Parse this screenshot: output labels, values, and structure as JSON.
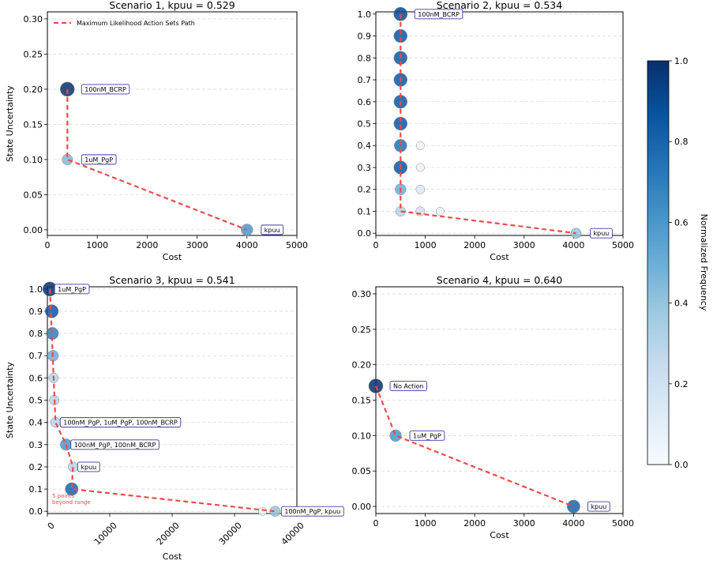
{
  "colorbar": {
    "label": "Normalized Frequency",
    "ticks": [
      "0.0",
      "0.2",
      "0.4",
      "0.6",
      "0.8",
      "1.0"
    ],
    "range": [
      0,
      1
    ]
  },
  "chart_data": [
    {
      "type": "scatter",
      "title": "Scenario 1, kpuu = 0.529",
      "xlabel": "Cost",
      "ylabel": "State Uncertainty",
      "xlim": [
        0,
        5000
      ],
      "ylim": [
        -0.008,
        0.31
      ],
      "xticks": [
        0,
        1000,
        2000,
        3000,
        4000,
        5000
      ],
      "xtick_labels": [
        "0",
        "1000",
        "2000",
        "3000",
        "4000",
        "5000"
      ],
      "yticks": [
        0,
        0.05,
        0.1,
        0.15,
        0.2,
        0.25,
        0.3
      ],
      "ytick_labels": [
        "0.00",
        "0.05",
        "0.10",
        "0.15",
        "0.20",
        "0.25",
        "0.30"
      ],
      "legend": {
        "label": "Maximum Likelihood Action Sets Path",
        "position": "top-left"
      },
      "points": [
        {
          "x": 400,
          "y": 0.2,
          "freq": 1.0
        },
        {
          "x": 400,
          "y": 0.1,
          "freq": 0.45
        },
        {
          "x": 4000,
          "y": 0.0,
          "freq": 0.6
        }
      ],
      "path": [
        [
          400,
          0.2
        ],
        [
          400,
          0.1
        ],
        [
          4000,
          0.0
        ]
      ],
      "annotations": [
        {
          "text": "100nM_BCRP",
          "x": 400,
          "y": 0.2
        },
        {
          "text": "1uM_PgP",
          "x": 400,
          "y": 0.1
        },
        {
          "text": "kpuu",
          "x": 4000,
          "y": 0.0
        }
      ]
    },
    {
      "type": "scatter",
      "title": "Scenario 2, kpuu = 0.534",
      "xlabel": "Cost",
      "ylabel": "",
      "xlim": [
        0,
        5000
      ],
      "ylim": [
        -0.01,
        1.01
      ],
      "xticks": [
        0,
        1000,
        2000,
        3000,
        4000,
        5000
      ],
      "xtick_labels": [
        "0",
        "1000",
        "2000",
        "3000",
        "4000",
        "5000"
      ],
      "yticks": [
        0,
        0.1,
        0.2,
        0.3,
        0.4,
        0.5,
        0.6,
        0.7,
        0.8,
        0.9,
        1.0
      ],
      "ytick_labels": [
        "0.0",
        "0.1",
        "0.2",
        "0.3",
        "0.4",
        "0.5",
        "0.6",
        "0.7",
        "0.8",
        "0.9",
        "1.0"
      ],
      "points": [
        {
          "x": 500,
          "y": 1.0,
          "freq": 0.9
        },
        {
          "x": 500,
          "y": 0.9,
          "freq": 0.85
        },
        {
          "x": 500,
          "y": 0.8,
          "freq": 0.85
        },
        {
          "x": 500,
          "y": 0.7,
          "freq": 0.85
        },
        {
          "x": 500,
          "y": 0.6,
          "freq": 0.85
        },
        {
          "x": 500,
          "y": 0.5,
          "freq": 0.85
        },
        {
          "x": 500,
          "y": 0.4,
          "freq": 0.75
        },
        {
          "x": 500,
          "y": 0.3,
          "freq": 0.85
        },
        {
          "x": 500,
          "y": 0.2,
          "freq": 0.5
        },
        {
          "x": 500,
          "y": 0.1,
          "freq": 0.3
        },
        {
          "x": 900,
          "y": 0.4,
          "freq": 0.05
        },
        {
          "x": 900,
          "y": 0.3,
          "freq": 0.05
        },
        {
          "x": 900,
          "y": 0.2,
          "freq": 0.15
        },
        {
          "x": 900,
          "y": 0.1,
          "freq": 0.2
        },
        {
          "x": 1300,
          "y": 0.1,
          "freq": 0.05
        },
        {
          "x": 4050,
          "y": 0.0,
          "freq": 0.4
        }
      ],
      "path": [
        [
          500,
          1.0
        ],
        [
          500,
          0.1
        ],
        [
          4050,
          0.0
        ]
      ],
      "annotations": [
        {
          "text": "100nM_BCRP",
          "x": 500,
          "y": 1.0
        },
        {
          "text": "kpuu",
          "x": 4050,
          "y": 0.0
        }
      ]
    },
    {
      "type": "scatter",
      "title": "Scenario 3, kpuu = 0.541",
      "xlabel": "Cost",
      "ylabel": "State Uncertainty",
      "xlim": [
        0,
        40000
      ],
      "ylim": [
        -0.01,
        1.01
      ],
      "xticks": [
        0,
        10000,
        20000,
        30000,
        40000
      ],
      "xtick_labels": [
        "0",
        "10000",
        "20000",
        "30000",
        "40000"
      ],
      "yticks": [
        0,
        0.1,
        0.2,
        0.3,
        0.4,
        0.5,
        0.6,
        0.7,
        0.8,
        0.9,
        1.0
      ],
      "ytick_labels": [
        "0.0",
        "0.1",
        "0.2",
        "0.3",
        "0.4",
        "0.5",
        "0.6",
        "0.7",
        "0.8",
        "0.9",
        "1.0"
      ],
      "points": [
        {
          "x": 400,
          "y": 1.0,
          "freq": 1.0
        },
        {
          "x": 700,
          "y": 0.9,
          "freq": 0.85
        },
        {
          "x": 800,
          "y": 0.8,
          "freq": 0.7
        },
        {
          "x": 900,
          "y": 0.7,
          "freq": 0.5
        },
        {
          "x": 1000,
          "y": 0.6,
          "freq": 0.3
        },
        {
          "x": 1100,
          "y": 0.5,
          "freq": 0.3
        },
        {
          "x": 1300,
          "y": 0.4,
          "freq": 0.3
        },
        {
          "x": 3000,
          "y": 0.3,
          "freq": 0.6
        },
        {
          "x": 4100,
          "y": 0.2,
          "freq": 0.3
        },
        {
          "x": 3900,
          "y": 0.1,
          "freq": 0.8
        },
        {
          "x": 34500,
          "y": 0.0,
          "freq": 0.05
        },
        {
          "x": 36500,
          "y": 0.0,
          "freq": 0.4
        }
      ],
      "path": [
        [
          400,
          1.0
        ],
        [
          1300,
          0.4
        ],
        [
          3000,
          0.3
        ],
        [
          4100,
          0.2
        ],
        [
          3900,
          0.1
        ],
        [
          36500,
          0.0
        ]
      ],
      "annotations": [
        {
          "text": "1uM_PgP",
          "x": 400,
          "y": 1.0
        },
        {
          "text": "100nM_PgP, 1uM_PgP, 100nM_BCRP",
          "x": 1300,
          "y": 0.4
        },
        {
          "text": "100nM_PgP, 100nM_BCRP",
          "x": 3000,
          "y": 0.3
        },
        {
          "text": "kpuu",
          "x": 4100,
          "y": 0.2
        },
        {
          "text": "100nM_PgP, kpuu",
          "x": 36500,
          "y": 0.0
        }
      ],
      "note": [
        "5 points",
        "beyond range"
      ]
    },
    {
      "type": "scatter",
      "title": "Scenario 4, kpuu = 0.640",
      "xlabel": "Cost",
      "ylabel": "",
      "xlim": [
        0,
        5000
      ],
      "ylim": [
        -0.01,
        0.31
      ],
      "xticks": [
        0,
        1000,
        2000,
        3000,
        4000,
        5000
      ],
      "xtick_labels": [
        "0",
        "1000",
        "2000",
        "3000",
        "4000",
        "5000"
      ],
      "yticks": [
        0,
        0.05,
        0.1,
        0.15,
        0.2,
        0.25,
        0.3
      ],
      "ytick_labels": [
        "0.00",
        "0.05",
        "0.10",
        "0.15",
        "0.20",
        "0.25",
        "0.30"
      ],
      "points": [
        {
          "x": 0,
          "y": 0.17,
          "freq": 1.0
        },
        {
          "x": 400,
          "y": 0.1,
          "freq": 0.6
        },
        {
          "x": 4000,
          "y": 0.0,
          "freq": 0.8
        }
      ],
      "path": [
        [
          0,
          0.17
        ],
        [
          400,
          0.1
        ],
        [
          4000,
          0.0
        ]
      ],
      "annotations": [
        {
          "text": "No Action",
          "x": 0,
          "y": 0.17
        },
        {
          "text": "1uM_PgP",
          "x": 400,
          "y": 0.1
        },
        {
          "text": "kpuu",
          "x": 4000,
          "y": 0.0
        }
      ]
    }
  ]
}
